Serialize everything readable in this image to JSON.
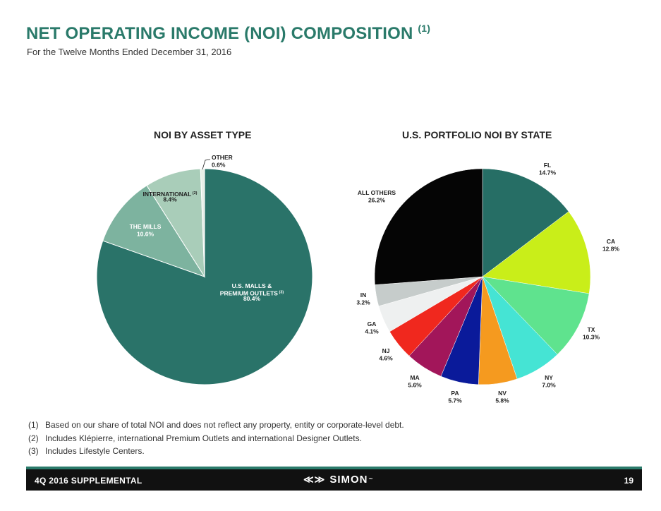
{
  "page": {
    "title": "NET OPERATING INCOME (NOI) COMPOSITION",
    "title_footnote": "(1)",
    "subtitle": "For the Twelve Months Ended December 31, 2016"
  },
  "chart_data": [
    {
      "type": "pie",
      "title": "NOI BY ASSET TYPE",
      "unit": "%",
      "start_angle_deg": 0,
      "slices": [
        {
          "name": "U.S. MALLS & PREMIUM OUTLETS",
          "footnote": "(3)",
          "value": 80.4,
          "color": "#2a7369",
          "label_color": "#ffffff"
        },
        {
          "name": "THE MILLS",
          "value": 10.6,
          "color": "#7db39f",
          "label_color": "#ffffff"
        },
        {
          "name": "INTERNATIONAL",
          "footnote": "(2)",
          "value": 8.4,
          "color": "#a9cdb9",
          "label_color": "#222222"
        },
        {
          "name": "OTHER",
          "value": 0.6,
          "color": "#e8efe8",
          "label_color": "#222222"
        }
      ]
    },
    {
      "type": "pie",
      "title": "U.S. PORTFOLIO NOI BY STATE",
      "unit": "%",
      "start_angle_deg": 0,
      "slices": [
        {
          "name": "FL",
          "value": 14.7,
          "color": "#266e65"
        },
        {
          "name": "CA",
          "value": 12.8,
          "color": "#c9ee19"
        },
        {
          "name": "TX",
          "value": 10.3,
          "color": "#5fe38e"
        },
        {
          "name": "NY",
          "value": 7.0,
          "color": "#45e4d4"
        },
        {
          "name": "NV",
          "value": 5.8,
          "color": "#f59a1f"
        },
        {
          "name": "PA",
          "value": 5.7,
          "color": "#0a1a9a"
        },
        {
          "name": "MA",
          "value": 5.6,
          "color": "#a2165a"
        },
        {
          "name": "NJ",
          "value": 4.6,
          "color": "#f0281e"
        },
        {
          "name": "GA",
          "value": 4.1,
          "color": "#eef0f0"
        },
        {
          "name": "IN",
          "value": 3.2,
          "color": "#c6cccb"
        },
        {
          "name": "ALL OTHERS",
          "value": 26.2,
          "color": "#050505"
        }
      ]
    }
  ],
  "footnotes": [
    {
      "num": "(1)",
      "text": "Based on our share of total NOI and does not reflect any property, entity or corporate-level debt."
    },
    {
      "num": "(2)",
      "text": "Includes Klépierre, international Premium Outlets and international Designer Outlets."
    },
    {
      "num": "(3)",
      "text": "Includes Lifestyle Centers."
    }
  ],
  "footer": {
    "left": "4Q 2016 SUPPLEMENTAL",
    "brand": "SIMON",
    "brand_mark": "≪≫",
    "trademark": "™",
    "page_number": "19"
  }
}
